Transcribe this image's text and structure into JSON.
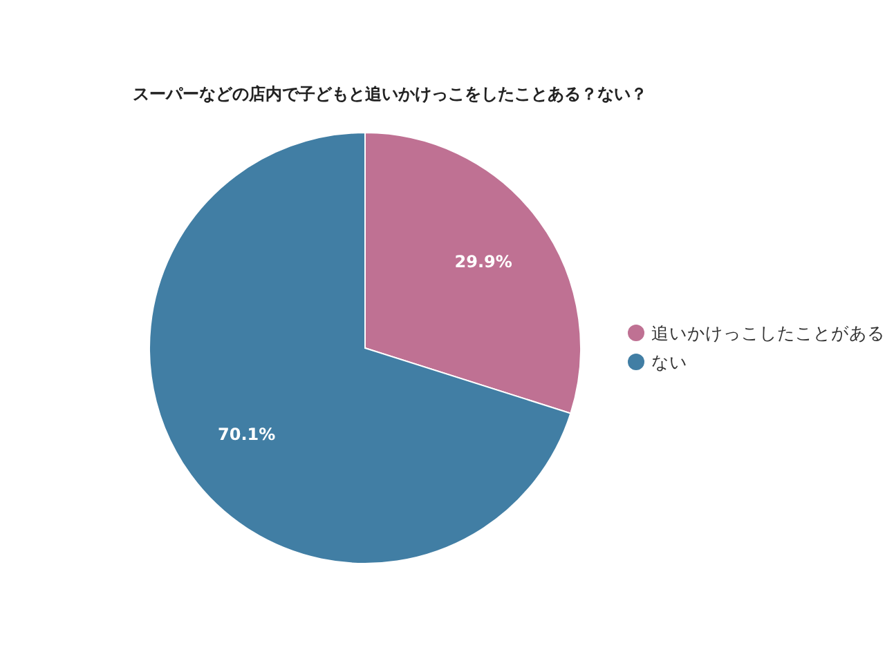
{
  "chart_data": {
    "type": "pie",
    "title": "スーパーなどの店内で子どもと追いかけっこをしたことある？ない？",
    "categories": [
      "追いかけっこしたことがある",
      "ない"
    ],
    "values": [
      29.9,
      70.1
    ],
    "colors": [
      "#bf7193",
      "#417ea4"
    ],
    "value_labels": [
      "29.9%",
      "70.1%"
    ],
    "legend": "right"
  }
}
